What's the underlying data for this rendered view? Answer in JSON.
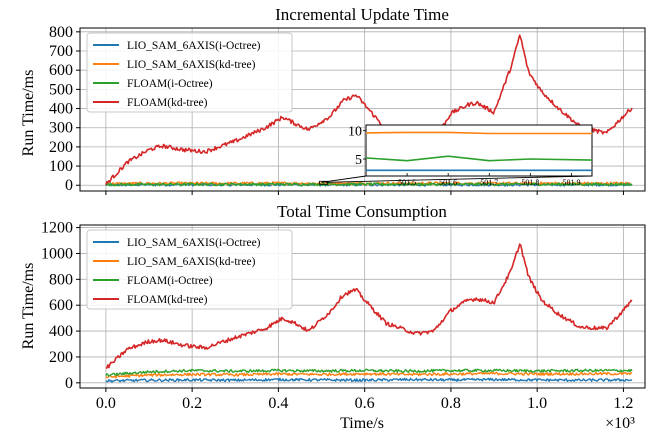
{
  "chart_data": [
    {
      "type": "line",
      "title": "Incremental Update Time",
      "xlabel": "",
      "ylabel": "Run Time/ms",
      "xlim": [
        -0.06,
        1.25
      ],
      "ylim": [
        -30,
        820
      ],
      "x_scale_label": "",
      "yticks": [
        0,
        100,
        200,
        300,
        400,
        500,
        600,
        700,
        800
      ],
      "xticks": [
        0.0,
        0.2,
        0.4,
        0.6,
        0.8,
        1.0,
        1.2
      ],
      "grid": true,
      "legend_position": "top-left",
      "series": [
        {
          "name": "LIO_SAM_6AXIS(i-Octree)",
          "color": "#1f77b4",
          "x": [
            0.0,
            0.1,
            0.2,
            0.3,
            0.4,
            0.5,
            0.6,
            0.7,
            0.8,
            0.9,
            1.0,
            1.1,
            1.22
          ],
          "y": [
            2,
            3,
            3,
            3,
            3,
            3,
            3,
            3,
            3,
            3,
            3,
            3,
            3
          ]
        },
        {
          "name": "LIO_SAM_6AXIS(kd-tree)",
          "color": "#ff7f0e",
          "x": [
            0.0,
            0.1,
            0.2,
            0.3,
            0.4,
            0.5,
            0.6,
            0.7,
            0.8,
            0.9,
            1.0,
            1.1,
            1.22
          ],
          "y": [
            8,
            10,
            10,
            10,
            11,
            10,
            10,
            10,
            11,
            10,
            10,
            10,
            10
          ]
        },
        {
          "name": "FLOAM(i-Octree)",
          "color": "#2ca02c",
          "x": [
            0.0,
            0.1,
            0.2,
            0.3,
            0.4,
            0.5,
            0.6,
            0.7,
            0.8,
            0.9,
            1.0,
            1.1,
            1.22
          ],
          "y": [
            3,
            4,
            5,
            5,
            5,
            5,
            5,
            5,
            5,
            5,
            5,
            5,
            5
          ]
        },
        {
          "name": "FLOAM(kd-tree)",
          "color": "#d62728",
          "x": [
            0.0,
            0.05,
            0.1,
            0.13,
            0.18,
            0.23,
            0.3,
            0.37,
            0.41,
            0.44,
            0.47,
            0.52,
            0.55,
            0.58,
            0.6,
            0.65,
            0.72,
            0.76,
            0.8,
            0.84,
            0.86,
            0.9,
            0.94,
            0.96,
            0.98,
            1.01,
            1.05,
            1.1,
            1.16,
            1.2,
            1.22
          ],
          "y": [
            5,
            120,
            185,
            205,
            185,
            175,
            230,
            300,
            355,
            320,
            290,
            360,
            440,
            470,
            420,
            290,
            200,
            230,
            375,
            420,
            430,
            380,
            620,
            785,
            590,
            490,
            400,
            305,
            270,
            360,
            405
          ]
        }
      ],
      "inset": {
        "xticks": [
          "501.5",
          "501.6",
          "501.7",
          "501.8",
          "501.9"
        ],
        "yticks": [
          5,
          10
        ],
        "ylim": [
          2,
          11
        ],
        "series": [
          {
            "name": "LIO_SAM_6AXIS(i-Octree)",
            "color": "#1f77b4",
            "x": [
              501.4,
              501.95
            ],
            "y": [
              3.0,
              3.0
            ]
          },
          {
            "name": "LIO_SAM_6AXIS(kd-tree)",
            "color": "#ff7f0e",
            "x": [
              501.4,
              501.5,
              501.6,
              501.7,
              501.8,
              501.95
            ],
            "y": [
              9.6,
              9.7,
              9.7,
              9.5,
              9.5,
              9.5
            ]
          },
          {
            "name": "FLOAM(i-Octree)",
            "color": "#2ca02c",
            "x": [
              501.4,
              501.5,
              501.6,
              501.7,
              501.8,
              501.95
            ],
            "y": [
              5.2,
              4.7,
              5.5,
              4.7,
              5.0,
              4.8
            ]
          }
        ]
      }
    },
    {
      "type": "line",
      "title": "Total Time Consumption",
      "xlabel": "Time/s",
      "ylabel": "Run Time/ms",
      "xlim": [
        -0.06,
        1.25
      ],
      "ylim": [
        -40,
        1220
      ],
      "x_scale_label": "×10³",
      "yticks": [
        0,
        200,
        400,
        600,
        800,
        1000,
        1200
      ],
      "xticks": [
        0.0,
        0.2,
        0.4,
        0.6,
        0.8,
        1.0,
        1.2
      ],
      "xtick_labels": [
        "0.0",
        "0.2",
        "0.4",
        "0.6",
        "0.8",
        "1.0",
        "1.2"
      ],
      "grid": true,
      "legend_position": "top-left",
      "series": [
        {
          "name": "LIO_SAM_6AXIS(i-Octree)",
          "color": "#1f77b4",
          "x": [
            0.0,
            0.1,
            0.2,
            0.3,
            0.4,
            0.5,
            0.6,
            0.7,
            0.8,
            0.9,
            1.0,
            1.1,
            1.22
          ],
          "y": [
            15,
            20,
            22,
            20,
            25,
            22,
            20,
            25,
            22,
            25,
            22,
            20,
            22
          ]
        },
        {
          "name": "LIO_SAM_6AXIS(kd-tree)",
          "color": "#ff7f0e",
          "x": [
            0.0,
            0.1,
            0.2,
            0.3,
            0.4,
            0.5,
            0.6,
            0.7,
            0.8,
            0.9,
            1.0,
            1.1,
            1.22
          ],
          "y": [
            45,
            60,
            65,
            62,
            68,
            65,
            70,
            65,
            68,
            72,
            68,
            70,
            70
          ]
        },
        {
          "name": "FLOAM(i-Octree)",
          "color": "#2ca02c",
          "x": [
            0.0,
            0.1,
            0.2,
            0.3,
            0.4,
            0.5,
            0.6,
            0.7,
            0.8,
            0.9,
            1.0,
            1.1,
            1.22
          ],
          "y": [
            60,
            85,
            95,
            90,
            95,
            92,
            95,
            90,
            95,
            95,
            92,
            95,
            95
          ]
        },
        {
          "name": "FLOAM(kd-tree)",
          "color": "#d62728",
          "x": [
            0.0,
            0.05,
            0.1,
            0.13,
            0.18,
            0.23,
            0.3,
            0.37,
            0.41,
            0.44,
            0.47,
            0.52,
            0.55,
            0.58,
            0.6,
            0.65,
            0.72,
            0.76,
            0.8,
            0.84,
            0.86,
            0.9,
            0.94,
            0.96,
            0.98,
            1.01,
            1.05,
            1.1,
            1.16,
            1.2,
            1.22
          ],
          "y": [
            110,
            260,
            320,
            330,
            290,
            270,
            350,
            420,
            500,
            460,
            400,
            550,
            680,
            720,
            640,
            460,
            380,
            400,
            560,
            640,
            650,
            620,
            870,
            1080,
            820,
            640,
            530,
            430,
            420,
            560,
            640
          ]
        }
      ]
    }
  ]
}
